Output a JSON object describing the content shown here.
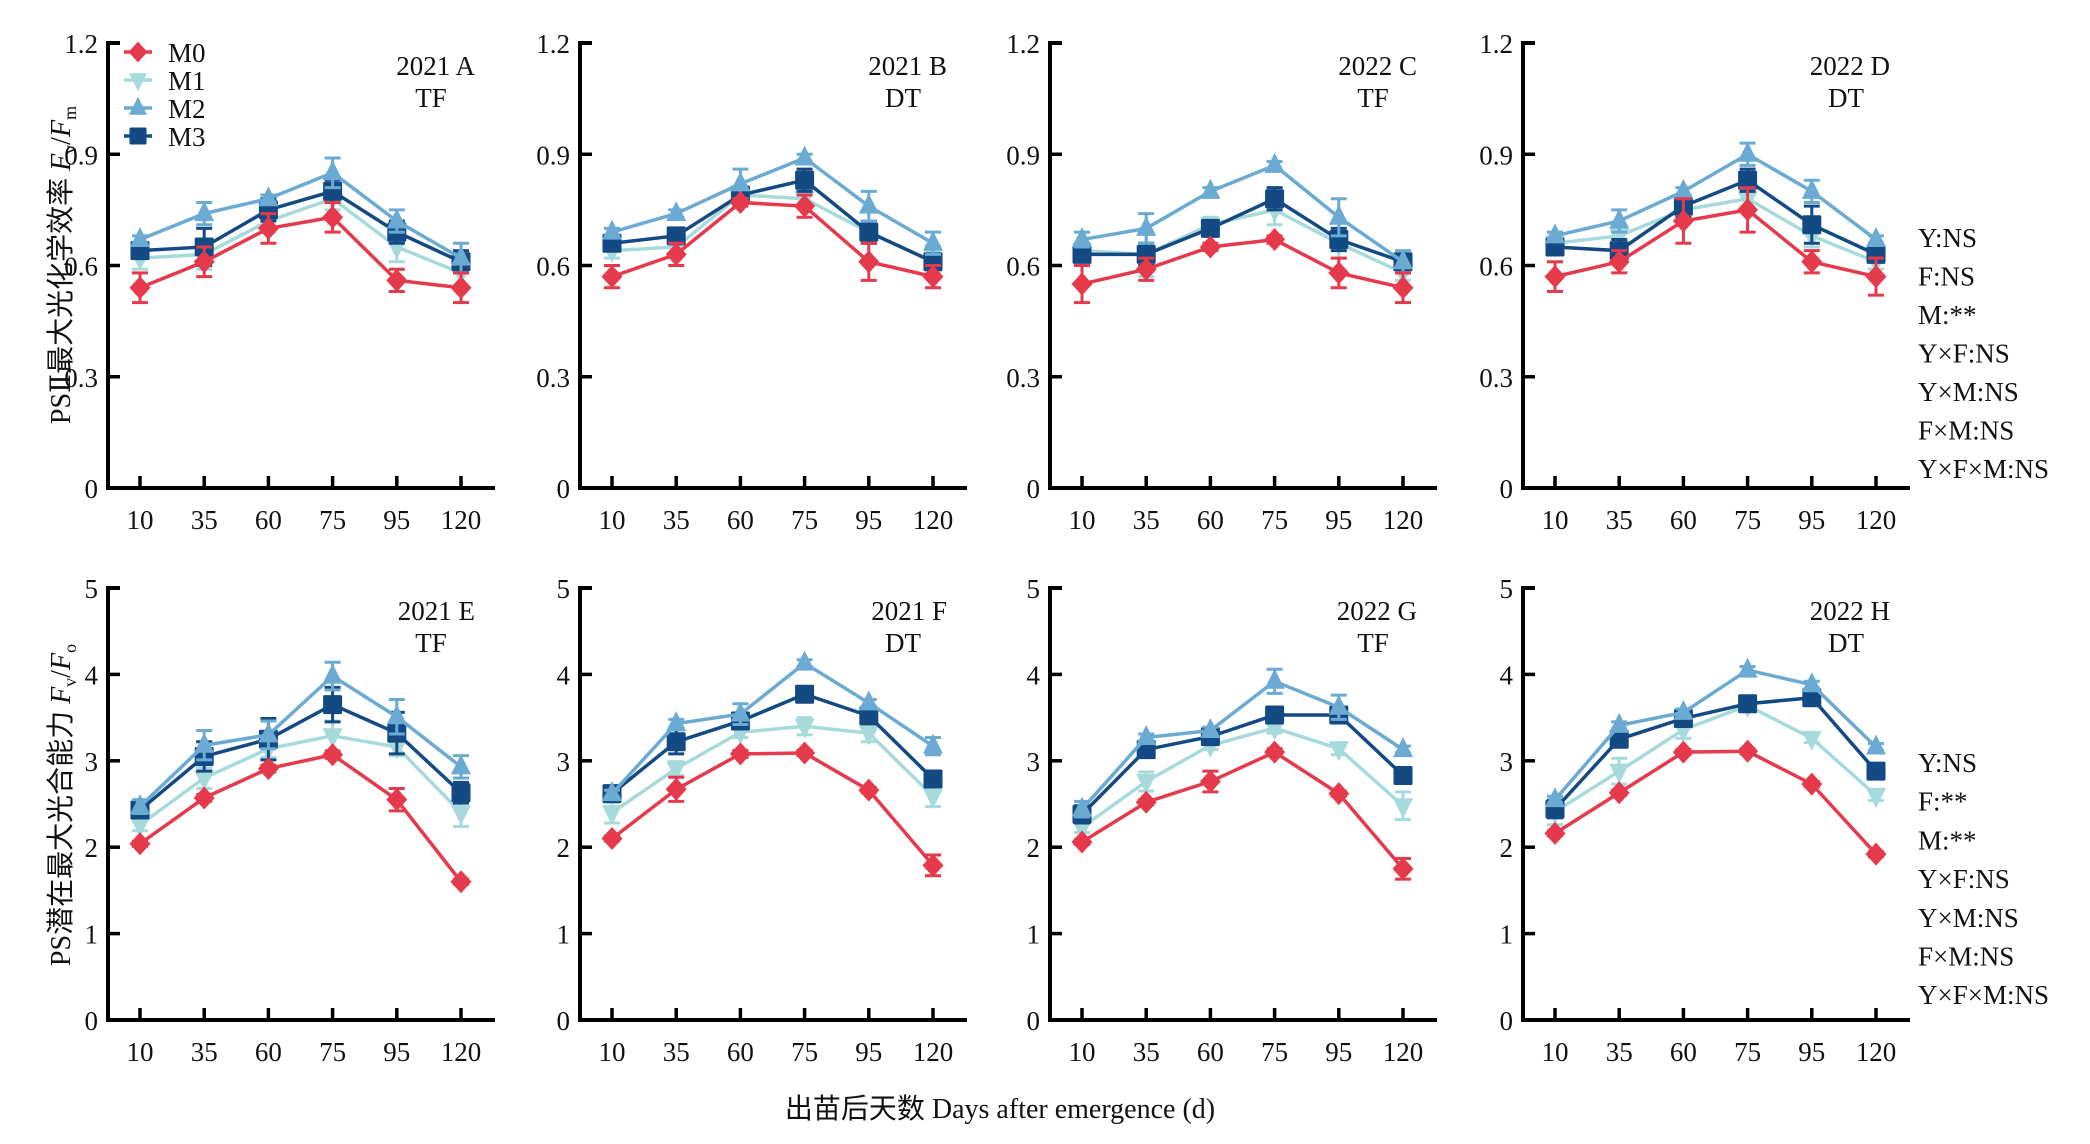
{
  "chart_data": {
    "type": "line",
    "x_categories": [
      "10",
      "35",
      "60",
      "75",
      "95",
      "120"
    ],
    "xlabel": "出苗后天数 Days after emergence (d)",
    "series_meta": [
      {
        "name": "M0",
        "color": "#E5394C",
        "marker": "diamond"
      },
      {
        "name": "M1",
        "color": "#A6DADB",
        "marker": "triangle-down"
      },
      {
        "name": "M2",
        "color": "#6AAAD3",
        "marker": "triangle-up"
      },
      {
        "name": "M3",
        "color": "#134A84",
        "marker": "square"
      }
    ],
    "rows": [
      {
        "ylabel_main": "PSⅡ最大光化学效率 ",
        "ylabel_italic_1": "F",
        "ylabel_sub_1": "v",
        "ylabel_slash": "/",
        "ylabel_italic_2": "F",
        "ylabel_sub_2": "m",
        "ylim": [
          0,
          1.2
        ],
        "yticks": [
          "0",
          "0.3",
          "0.6",
          "0.9",
          "1.2"
        ],
        "ytick_values": [
          0,
          0.3,
          0.6,
          0.9,
          1.2
        ],
        "stats": [
          "Y:NS",
          "F:NS",
          "M:**",
          "Y×F:NS",
          "Y×M:NS",
          "F×M:NS",
          "Y×F×M:NS"
        ]
      },
      {
        "ylabel_main": "PS潜在最大光合能力 ",
        "ylabel_italic_1": "F",
        "ylabel_sub_1": "v",
        "ylabel_slash": "/",
        "ylabel_italic_2": "F",
        "ylabel_sub_2": "o",
        "ylim": [
          0,
          5
        ],
        "yticks": [
          "0",
          "1",
          "2",
          "3",
          "4",
          "5"
        ],
        "ytick_values": [
          0,
          1,
          2,
          3,
          4,
          5
        ],
        "stats": [
          "Y:NS",
          "F:**",
          "M:**",
          "Y×F:NS",
          "Y×M:NS",
          "F×M:NS",
          "Y×F×M:NS"
        ]
      }
    ],
    "panels": [
      {
        "id": "A",
        "row": 0,
        "col": 0,
        "title_line1": "2021 A",
        "title_line2": "TF",
        "legend": true,
        "series": [
          {
            "name": "M0",
            "values": [
              0.54,
              0.61,
              0.7,
              0.73,
              0.56,
              0.54
            ],
            "err": [
              0.04,
              0.04,
              0.04,
              0.04,
              0.03,
              0.04
            ]
          },
          {
            "name": "M1",
            "values": [
              0.62,
              0.63,
              0.72,
              0.78,
              0.65,
              0.58
            ],
            "err": [
              0.03,
              0.04,
              0.03,
              0.03,
              0.04,
              0.04
            ]
          },
          {
            "name": "M2",
            "values": [
              0.67,
              0.74,
              0.78,
              0.85,
              0.72,
              0.62
            ],
            "err": [
              0.01,
              0.03,
              0.01,
              0.04,
              0.03,
              0.04
            ]
          },
          {
            "name": "M3",
            "values": [
              0.64,
              0.65,
              0.75,
              0.8,
              0.69,
              0.61
            ],
            "err": [
              0.02,
              0.05,
              0.03,
              0.03,
              0.03,
              0.03
            ]
          }
        ]
      },
      {
        "id": "B",
        "row": 0,
        "col": 1,
        "title_line1": "2021 B",
        "title_line2": "DT",
        "legend": false,
        "series": [
          {
            "name": "M0",
            "values": [
              0.57,
              0.63,
              0.77,
              0.76,
              0.61,
              0.57
            ],
            "err": [
              0.03,
              0.03,
              0.01,
              0.03,
              0.05,
              0.03
            ]
          },
          {
            "name": "M1",
            "values": [
              0.64,
              0.65,
              0.79,
              0.78,
              0.69,
              0.61
            ],
            "err": [
              0.02,
              0.02,
              0.02,
              0.02,
              0.03,
              0.03
            ]
          },
          {
            "name": "M2",
            "values": [
              0.69,
              0.74,
              0.82,
              0.89,
              0.76,
              0.66
            ],
            "err": [
              0.01,
              0.01,
              0.04,
              0.01,
              0.04,
              0.03
            ]
          },
          {
            "name": "M3",
            "values": [
              0.66,
              0.68,
              0.79,
              0.83,
              0.69,
              0.61
            ],
            "err": [
              0.02,
              0.02,
              0.01,
              0.03,
              0.03,
              0.04
            ]
          }
        ]
      },
      {
        "id": "C",
        "row": 0,
        "col": 2,
        "title_line1": "2022 C",
        "title_line2": "TF",
        "legend": false,
        "series": [
          {
            "name": "M0",
            "values": [
              0.55,
              0.59,
              0.65,
              0.67,
              0.58,
              0.54
            ],
            "err": [
              0.05,
              0.03,
              0.01,
              0.01,
              0.04,
              0.04
            ]
          },
          {
            "name": "M1",
            "values": [
              0.64,
              0.63,
              0.71,
              0.75,
              0.66,
              0.58
            ],
            "err": [
              0.02,
              0.06,
              0.02,
              0.04,
              0.04,
              0.02
            ]
          },
          {
            "name": "M2",
            "values": [
              0.67,
              0.7,
              0.8,
              0.87,
              0.73,
              0.61
            ],
            "err": [
              0.02,
              0.04,
              0.01,
              0.01,
              0.05,
              0.03
            ]
          },
          {
            "name": "M3",
            "values": [
              0.63,
              0.63,
              0.7,
              0.78,
              0.67,
              0.61
            ],
            "err": [
              0.02,
              0.03,
              0.02,
              0.03,
              0.03,
              0.02
            ]
          }
        ]
      },
      {
        "id": "D",
        "row": 0,
        "col": 3,
        "title_line1": "2022 D",
        "title_line2": "DT",
        "legend": false,
        "series": [
          {
            "name": "M0",
            "values": [
              0.57,
              0.61,
              0.72,
              0.75,
              0.61,
              0.57
            ],
            "err": [
              0.04,
              0.03,
              0.06,
              0.06,
              0.03,
              0.05
            ]
          },
          {
            "name": "M1",
            "values": [
              0.66,
              0.68,
              0.75,
              0.78,
              0.68,
              0.61
            ],
            "err": [
              0.02,
              0.02,
              0.03,
              0.03,
              0.03,
              0.02
            ]
          },
          {
            "name": "M2",
            "values": [
              0.68,
              0.72,
              0.8,
              0.9,
              0.8,
              0.67
            ],
            "err": [
              0.01,
              0.03,
              0.01,
              0.03,
              0.03,
              0.01
            ]
          },
          {
            "name": "M3",
            "values": [
              0.65,
              0.64,
              0.76,
              0.83,
              0.71,
              0.63
            ],
            "err": [
              0.02,
              0.03,
              0.03,
              0.03,
              0.05,
              0.02
            ]
          }
        ]
      },
      {
        "id": "E",
        "row": 1,
        "col": 0,
        "title_line1": "2021 E",
        "title_line2": "TF",
        "legend": false,
        "series": [
          {
            "name": "M0",
            "values": [
              2.04,
              2.57,
              2.91,
              3.07,
              2.55,
              1.6
            ],
            "err": [
              0.03,
              0.04,
              0.04,
              0.04,
              0.13,
              0.03
            ]
          },
          {
            "name": "M1",
            "values": [
              2.26,
              2.8,
              3.14,
              3.29,
              3.16,
              2.4
            ],
            "err": [
              0.07,
              0.12,
              0.1,
              0.17,
              0.1,
              0.16
            ]
          },
          {
            "name": "M2",
            "values": [
              2.47,
              3.18,
              3.3,
              3.98,
              3.51,
              2.93
            ],
            "err": [
              0.08,
              0.17,
              0.16,
              0.16,
              0.2,
              0.13
            ]
          },
          {
            "name": "M3",
            "values": [
              2.43,
              3.05,
              3.25,
              3.65,
              3.32,
              2.63
            ],
            "err": [
              0.06,
              0.17,
              0.24,
              0.2,
              0.24,
              0.12
            ]
          }
        ]
      },
      {
        "id": "F",
        "row": 1,
        "col": 1,
        "title_line1": "2021 F",
        "title_line2": "DT",
        "legend": false,
        "series": [
          {
            "name": "M0",
            "values": [
              2.1,
              2.67,
              3.08,
              3.09,
              2.66,
              1.79
            ],
            "err": [
              0.03,
              0.14,
              0.04,
              0.03,
              0.03,
              0.12
            ]
          },
          {
            "name": "M1",
            "values": [
              2.4,
              2.91,
              3.33,
              3.4,
              3.32,
              2.59
            ],
            "err": [
              0.12,
              0.08,
              0.06,
              0.1,
              0.1,
              0.12
            ]
          },
          {
            "name": "M2",
            "values": [
              2.62,
              3.43,
              3.54,
              4.13,
              3.67,
              3.17
            ],
            "err": [
              0.04,
              0.05,
              0.12,
              0.04,
              0.04,
              0.1
            ]
          },
          {
            "name": "M3",
            "values": [
              2.62,
              3.22,
              3.46,
              3.77,
              3.52,
              2.79
            ],
            "err": [
              0.06,
              0.14,
              0.06,
              0.06,
              0.06,
              0.06
            ]
          }
        ]
      },
      {
        "id": "G",
        "row": 1,
        "col": 2,
        "title_line1": "2022 G",
        "title_line2": "TF",
        "legend": false,
        "series": [
          {
            "name": "M0",
            "values": [
              2.06,
              2.52,
              2.76,
              3.1,
              2.62,
              1.75
            ],
            "err": [
              0.03,
              0.03,
              0.12,
              0.04,
              0.03,
              0.12
            ]
          },
          {
            "name": "M1",
            "values": [
              2.23,
              2.76,
              3.18,
              3.38,
              3.14,
              2.48
            ],
            "err": [
              0.06,
              0.11,
              0.05,
              0.06,
              0.07,
              0.16
            ]
          },
          {
            "name": "M2",
            "values": [
              2.44,
              3.27,
              3.35,
              3.92,
              3.62,
              3.13
            ],
            "err": [
              0.09,
              0.04,
              0.04,
              0.14,
              0.14,
              0.04
            ]
          },
          {
            "name": "M3",
            "values": [
              2.38,
              3.13,
              3.28,
              3.53,
              3.53,
              2.83
            ],
            "err": [
              0.1,
              0.04,
              0.07,
              0.04,
              0.05,
              0.04
            ]
          }
        ]
      },
      {
        "id": "H",
        "row": 1,
        "col": 3,
        "title_line1": "2022 H",
        "title_line2": "DT",
        "legend": false,
        "series": [
          {
            "name": "M0",
            "values": [
              2.16,
              2.63,
              3.1,
              3.11,
              2.73,
              1.92
            ],
            "err": [
              0.03,
              0.03,
              0.03,
              0.03,
              0.03,
              0.03
            ]
          },
          {
            "name": "M1",
            "values": [
              2.41,
              2.88,
              3.36,
              3.64,
              3.26,
              2.6
            ],
            "err": [
              0.15,
              0.15,
              0.1,
              0.05,
              0.05,
              0.06
            ]
          },
          {
            "name": "M2",
            "values": [
              2.55,
              3.41,
              3.56,
              4.05,
              3.88,
              3.16
            ],
            "err": [
              0.04,
              0.04,
              0.04,
              0.04,
              0.04,
              0.04
            ]
          },
          {
            "name": "M3",
            "values": [
              2.44,
              3.25,
              3.49,
              3.66,
              3.73,
              2.88
            ],
            "err": [
              0.1,
              0.07,
              0.07,
              0.07,
              0.05,
              0.08
            ]
          }
        ]
      }
    ]
  }
}
